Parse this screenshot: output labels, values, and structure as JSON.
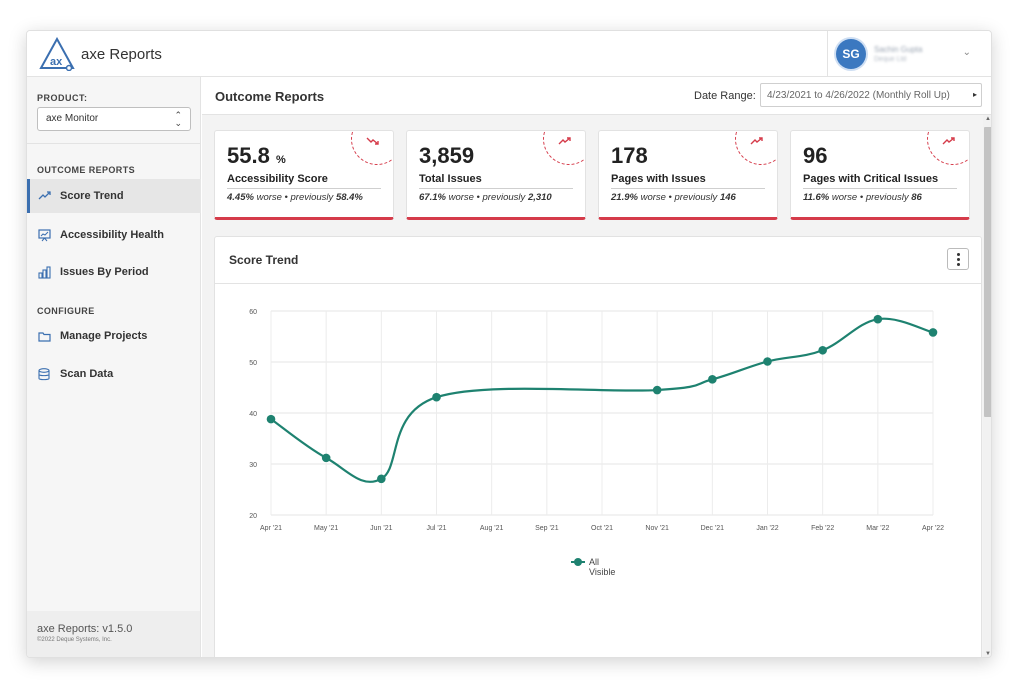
{
  "app": {
    "logo_text_prefix": "axe",
    "logo_text_suffix": "Reports"
  },
  "user": {
    "initials": "SG",
    "name": "Sachin Gupta",
    "org": "Deque Ltd"
  },
  "sidebar": {
    "product_label": "PRODUCT:",
    "product_value": "axe Monitor",
    "outcome_section": "OUTCOME REPORTS",
    "configure_section": "CONFIGURE",
    "items": [
      {
        "label": "Score Trend",
        "icon": "trend-icon",
        "active": true
      },
      {
        "label": "Accessibility Health",
        "icon": "presentation-chart-icon",
        "active": false
      },
      {
        "label": "Issues By Period",
        "icon": "bar-chart-icon",
        "active": false
      }
    ],
    "config_items": [
      {
        "label": "Manage Projects",
        "icon": "folder-icon"
      },
      {
        "label": "Scan Data",
        "icon": "database-icon"
      }
    ],
    "version": "axe Reports: v1.5.0",
    "copyright": "©2022 Deque Systems, Inc."
  },
  "main": {
    "title": "Outcome Reports",
    "date_label": "Date Range:",
    "date_value": "4/23/2021 to 4/26/2022 (Monthly Roll Up)"
  },
  "cards": [
    {
      "value": "55.8",
      "unit": "%",
      "label": "Accessibility Score",
      "delta_pct": "4.45%",
      "delta_text": " worse • previously ",
      "prev": "58.4%",
      "trend_icon": "trend-down-icon"
    },
    {
      "value": "3,859",
      "unit": "",
      "label": "Total Issues",
      "delta_pct": "67.1%",
      "delta_text": " worse • previously ",
      "prev": "2,310",
      "trend_icon": "trend-up-icon"
    },
    {
      "value": "178",
      "unit": "",
      "label": "Pages with Issues",
      "delta_pct": "21.9%",
      "delta_text": " worse • previously ",
      "prev": "146",
      "trend_icon": "trend-up-icon"
    },
    {
      "value": "96",
      "unit": "",
      "label": "Pages with Critical Issues",
      "delta_pct": "11.6%",
      "delta_text": " worse • previously ",
      "prev": "86",
      "trend_icon": "trend-up-icon"
    }
  ],
  "colors": {
    "accent": "#3b6fb0",
    "alert": "#d53b4a",
    "series": "#1e8270"
  },
  "chart_data": {
    "type": "line",
    "title": "Score Trend",
    "categories": [
      "Apr '21",
      "May '21",
      "Jun '21",
      "Jul '21",
      "Aug '21",
      "Sep '21",
      "Oct '21",
      "Nov '21",
      "Dec '21",
      "Jan '22",
      "Feb '22",
      "Mar '22",
      "Apr '22"
    ],
    "series": [
      {
        "name": "All Visible",
        "values": [
          38.8,
          31.2,
          27.1,
          43.1,
          null,
          null,
          null,
          44.5,
          46.6,
          50.1,
          52.3,
          58.4,
          55.8
        ]
      }
    ],
    "ylim": [
      20,
      60
    ],
    "yticks": [
      20,
      30,
      40,
      50,
      60
    ],
    "grid": true,
    "legend_position": "bottom",
    "legend_line1": "All",
    "legend_line2": "Visible"
  }
}
